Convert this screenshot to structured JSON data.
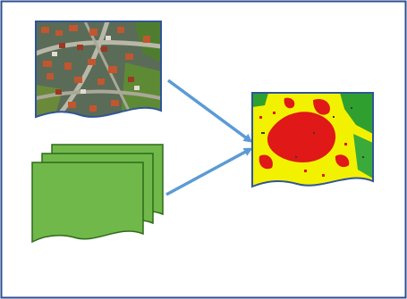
{
  "diagram": {
    "colors": {
      "frame_border": "#2e4f8f",
      "arrow": "#5b9bd5",
      "doc_border": "#2f5597",
      "stack_fill": "#70b84a",
      "stack_border": "#2e6b1a",
      "map_yellow": "#f2f200",
      "map_red": "#e01818",
      "map_green": "#2fa02f"
    },
    "icons": {
      "aerial_photo": "aerial-photo-icon",
      "layer_stack": "document-stack-icon",
      "output_map": "risk-map-icon"
    }
  }
}
